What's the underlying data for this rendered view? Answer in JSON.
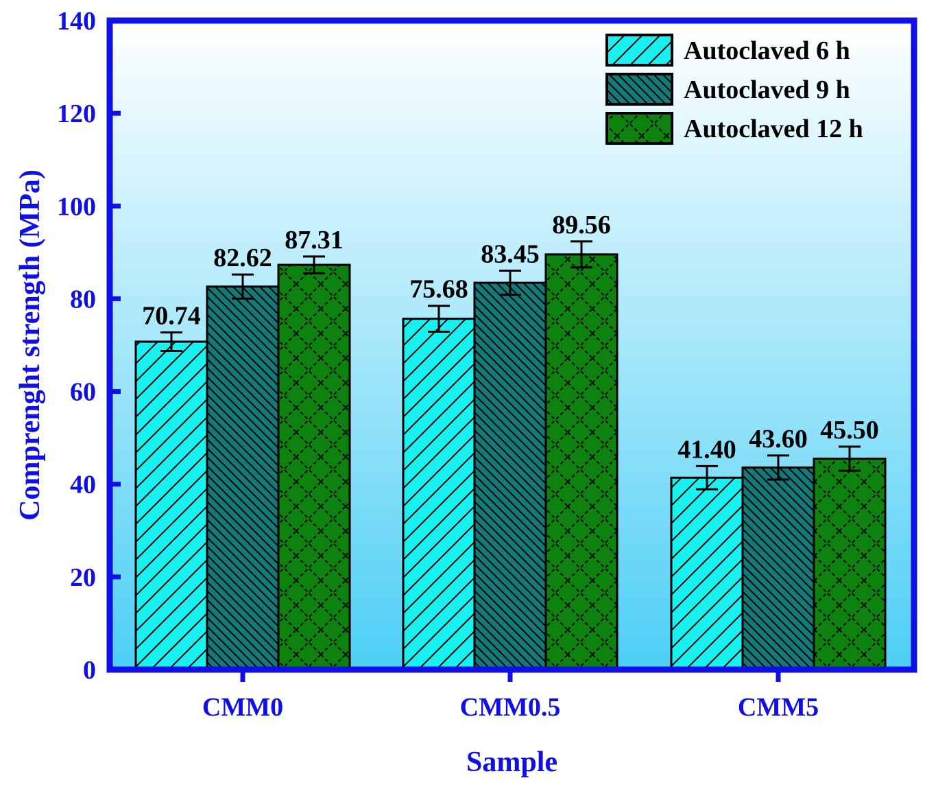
{
  "chart_data": {
    "type": "bar",
    "title": "",
    "xlabel": "Sample",
    "ylabel": "Comprenght strength (MPa)",
    "ylim": [
      0,
      140
    ],
    "yticks": [
      0,
      20,
      40,
      60,
      80,
      100,
      120,
      140
    ],
    "categories": [
      "CMM0",
      "CMM0.5",
      "CMM5"
    ],
    "series": [
      {
        "name": "Autoclaved 6 h",
        "values": [
          70.74,
          75.68,
          41.4
        ],
        "labels": [
          "70.74",
          "75.68",
          "41.40"
        ],
        "errors": [
          2.0,
          2.8,
          2.5
        ],
        "color": "#19f0f0",
        "pattern": "diagonal-hatch"
      },
      {
        "name": "Autoclaved 9 h",
        "values": [
          82.62,
          83.45,
          43.6
        ],
        "labels": [
          "82.62",
          "83.45",
          "43.60"
        ],
        "errors": [
          2.6,
          2.6,
          2.6
        ],
        "color": "#137a7a",
        "pattern": "dense-diagonal-hatch"
      },
      {
        "name": "Autoclaved 12 h",
        "values": [
          87.31,
          89.56,
          45.5
        ],
        "labels": [
          "87.31",
          "89.56",
          "45.50"
        ],
        "errors": [
          1.8,
          2.8,
          2.6
        ],
        "color": "#0e820e",
        "pattern": "crosshatch-zigzag"
      }
    ],
    "legend_position": "top-right",
    "grid": false,
    "axis_color": "#1010e6",
    "background_gradient": [
      "#ffffff",
      "#4dcff5"
    ]
  }
}
